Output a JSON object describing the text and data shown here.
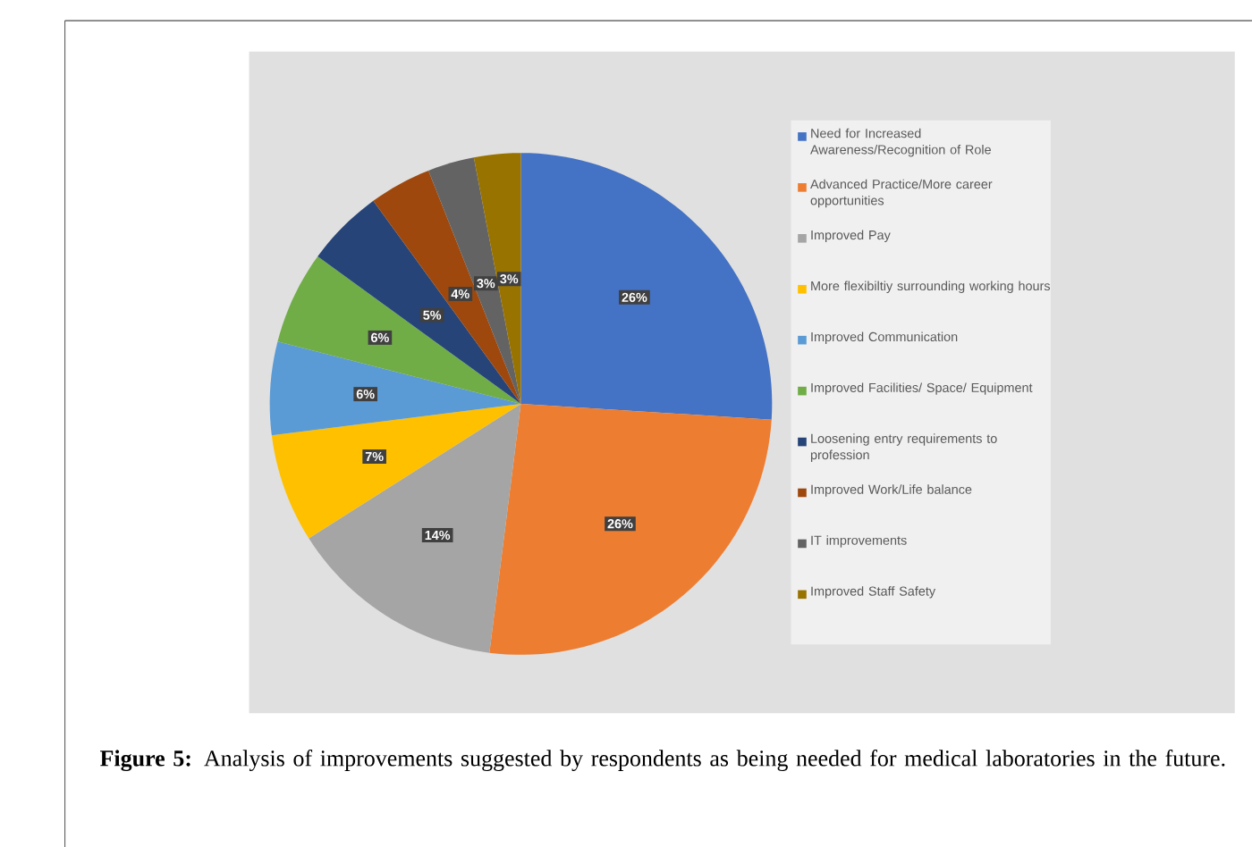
{
  "chart_data": {
    "type": "pie",
    "categories": [
      "Need for Increased Awareness/Recognition of Role",
      "Advanced Practice/More career opportunities",
      "Improved Pay",
      "More flexibiltiy surrounding working hours",
      "Improved Communication",
      "Improved Facilities/ Space/ Equipment",
      "Loosening entry requirements to profession",
      "Improved Work/Life balance",
      "IT improvements",
      "Improved Staff Safety"
    ],
    "values": [
      26,
      26,
      14,
      7,
      6,
      6,
      5,
      4,
      3,
      3
    ],
    "colors": [
      "#4472c4",
      "#ed7d31",
      "#a5a5a5",
      "#ffc000",
      "#5b9bd5",
      "#70ad47",
      "#264478",
      "#9e480e",
      "#636363",
      "#997300"
    ],
    "value_labels": [
      "26%",
      "26%",
      "14%",
      "7%",
      "6%",
      "6%",
      "5%",
      "4%",
      "3%",
      "3%"
    ],
    "legend": "right",
    "annotations": [
      "**Figure 5:** Analysis of improvements suggested by respondents as being needed for medical laboratories in the future."
    ]
  }
}
